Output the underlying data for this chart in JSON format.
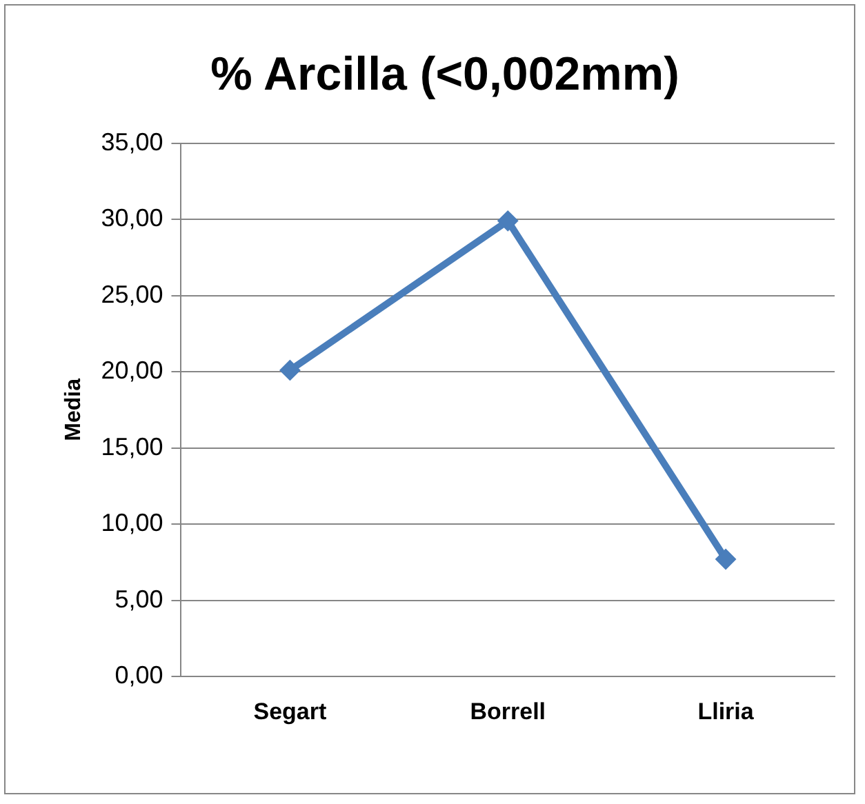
{
  "chart_data": {
    "type": "line",
    "title": "% Arcilla (<0,002mm)",
    "ylabel": "Media",
    "categories": [
      "Segart",
      "Borrell",
      "Lliria"
    ],
    "series": [
      {
        "color": "#4a7ebb",
        "values": [
          20.1,
          29.9,
          7.7
        ]
      }
    ],
    "ylim": [
      0,
      35
    ],
    "yticks": [
      {
        "value": 0,
        "label": "0,00"
      },
      {
        "value": 5,
        "label": "5,00"
      },
      {
        "value": 10,
        "label": "10,00"
      },
      {
        "value": 15,
        "label": "15,00"
      },
      {
        "value": 20,
        "label": "20,00"
      },
      {
        "value": 25,
        "label": "25,00"
      },
      {
        "value": 30,
        "label": "30,00"
      },
      {
        "value": 35,
        "label": "35,00"
      }
    ],
    "grid": "y",
    "legend": false,
    "marker": "diamond",
    "line_style": "solid"
  }
}
